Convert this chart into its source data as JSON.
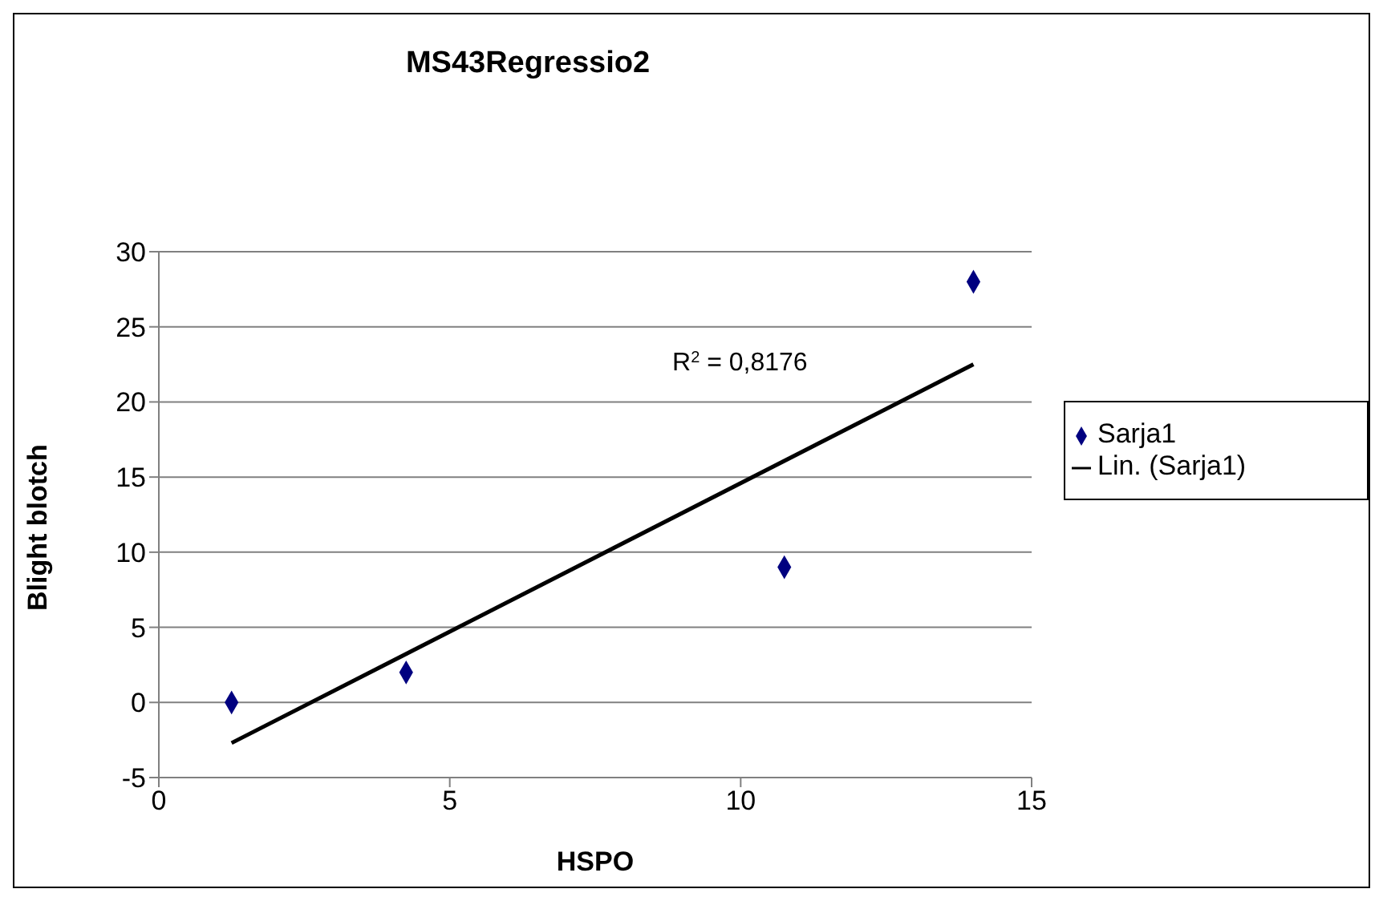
{
  "chart_data": {
    "type": "scatter",
    "title": "MS43Regressio2",
    "xlabel": "HSPO",
    "ylabel": "Blight blotch",
    "x": [
      1.25,
      4.25,
      10.75,
      14
    ],
    "series": [
      {
        "name": "Sarja1",
        "color": "#000080",
        "values": [
          0,
          2,
          9,
          28
        ],
        "marker": "diamond"
      },
      {
        "name": "Lin. (Sarja1)",
        "type": "line",
        "color": "#000000",
        "x": [
          1.25,
          14
        ],
        "values": [
          -2.7,
          22.5
        ],
        "marker": "none"
      }
    ],
    "annotations": [
      "R$^{2}$ = 0,8176"
    ],
    "xlim": [
      0,
      15
    ],
    "xticks": [
      0,
      5,
      10,
      15
    ],
    "ylim": [
      -5,
      30
    ],
    "yticks": [
      -5,
      0,
      5,
      10,
      15,
      20,
      25,
      30
    ],
    "grid": "y",
    "legend": "right"
  }
}
